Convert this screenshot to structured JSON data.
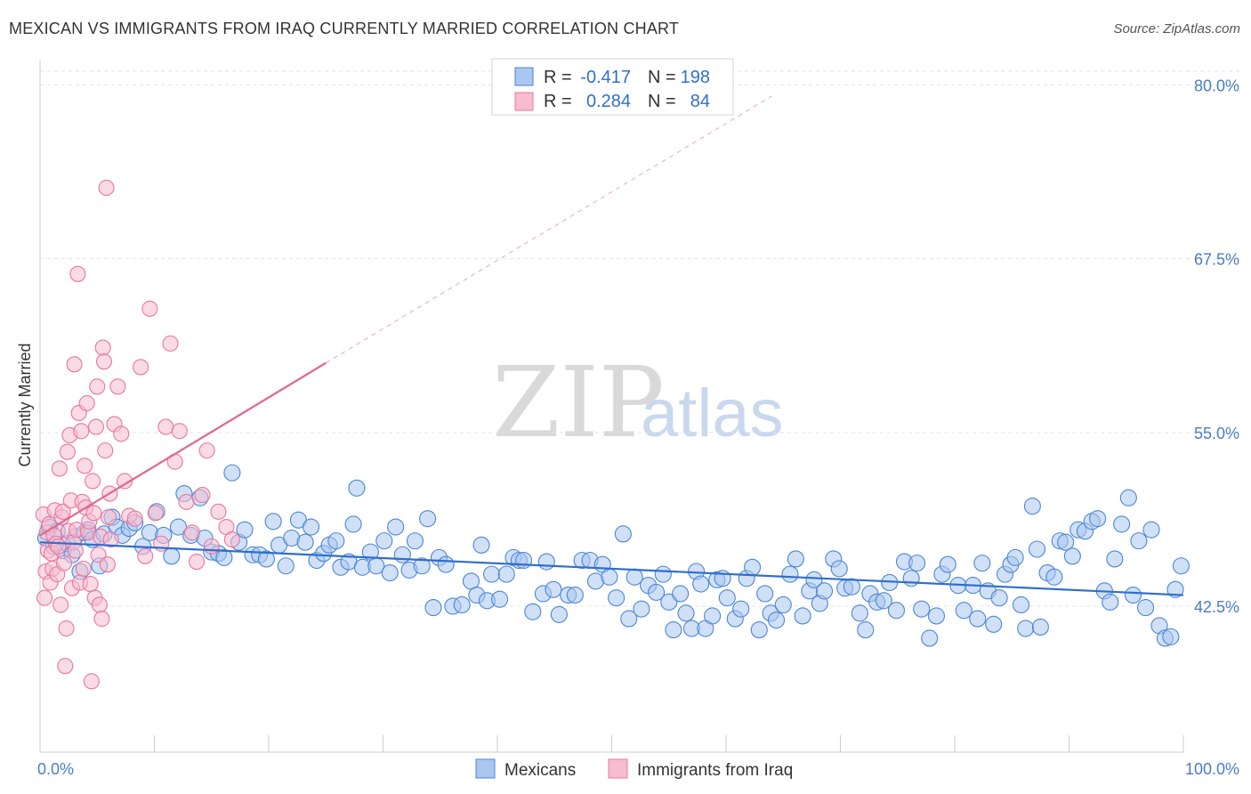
{
  "title": "MEXICAN VS IMMIGRANTS FROM IRAQ CURRENTLY MARRIED CORRELATION CHART",
  "source": "Source: ZipAtlas.com",
  "watermark": {
    "zip": "ZIP",
    "atlas": "atlas"
  },
  "colors": {
    "blue": "#4a86d6",
    "blue_fill": "#a9c7ef",
    "pink": "#e8779c",
    "pink_fill": "#f6bccf",
    "trend_blue": "#2f6fcc",
    "trend_pink": "#e06890"
  },
  "stats": {
    "r_label": "R =",
    "n_label": "N =",
    "series1": {
      "r": "-0.417",
      "n": "198"
    },
    "series2": {
      "r": "0.284",
      "n": "84"
    }
  },
  "chart_data": {
    "type": "scatter",
    "title": "MEXICAN VS IMMIGRANTS FROM IRAQ CURRENTLY MARRIED CORRELATION CHART",
    "xlabel": "",
    "ylabel": "Currently Married",
    "xlim": [
      0,
      100
    ],
    "ylim": [
      32.0,
      81.5
    ],
    "y_ticks": [
      42.5,
      55.0,
      67.5,
      80.0
    ],
    "y_tick_labels": [
      "42.5%",
      "55.0%",
      "67.5%",
      "80.0%"
    ],
    "x_tick_labels": [
      "0.0%",
      "100.0%"
    ],
    "grid": "horizontal dashed",
    "legend_position": "bottom-center",
    "series": [
      {
        "name": "Mexicans",
        "color": "#4a86d6",
        "trend": {
          "x": [
            0,
            100
          ],
          "y": [
            47.1,
            43.3
          ]
        },
        "points": [
          [
            0.5,
            47.4
          ],
          [
            0.8,
            48.2
          ],
          [
            1.2,
            46.8
          ],
          [
            1.5,
            47.9
          ],
          [
            2.0,
            46.5
          ],
          [
            2.4,
            47.0
          ],
          [
            2.8,
            46.2
          ],
          [
            3.1,
            47.5
          ],
          [
            3.5,
            45.0
          ],
          [
            3.9,
            47.8
          ],
          [
            4.2,
            48.0
          ],
          [
            4.6,
            47.3
          ],
          [
            5.2,
            45.4
          ],
          [
            5.6,
            47.7
          ],
          [
            6.3,
            48.9
          ],
          [
            6.7,
            48.2
          ],
          [
            7.2,
            47.6
          ],
          [
            7.8,
            48.1
          ],
          [
            8.3,
            48.5
          ],
          [
            9.0,
            46.8
          ],
          [
            9.6,
            47.8
          ],
          [
            10.2,
            49.3
          ],
          [
            10.8,
            47.6
          ],
          [
            11.5,
            46.1
          ],
          [
            12.1,
            48.2
          ],
          [
            12.6,
            50.6
          ],
          [
            13.2,
            47.6
          ],
          [
            14.0,
            50.3
          ],
          [
            14.4,
            47.4
          ],
          [
            15.0,
            46.4
          ],
          [
            15.6,
            46.3
          ],
          [
            16.1,
            46.0
          ],
          [
            16.8,
            52.1
          ],
          [
            17.4,
            47.1
          ],
          [
            17.9,
            48.0
          ],
          [
            18.6,
            46.2
          ],
          [
            19.2,
            46.2
          ],
          [
            19.8,
            45.9
          ],
          [
            20.4,
            48.6
          ],
          [
            20.9,
            46.9
          ],
          [
            21.5,
            45.4
          ],
          [
            22.0,
            47.4
          ],
          [
            22.6,
            48.7
          ],
          [
            23.2,
            47.1
          ],
          [
            23.7,
            48.2
          ],
          [
            24.2,
            45.8
          ],
          [
            24.8,
            46.3
          ],
          [
            25.3,
            46.9
          ],
          [
            25.9,
            47.2
          ],
          [
            26.3,
            45.3
          ],
          [
            27.0,
            45.7
          ],
          [
            27.4,
            48.4
          ],
          [
            27.7,
            51.0
          ],
          [
            28.2,
            45.3
          ],
          [
            28.9,
            46.4
          ],
          [
            29.4,
            45.4
          ],
          [
            30.1,
            47.2
          ],
          [
            30.6,
            44.9
          ],
          [
            31.1,
            48.2
          ],
          [
            31.7,
            46.2
          ],
          [
            32.3,
            45.1
          ],
          [
            32.8,
            47.2
          ],
          [
            33.4,
            45.4
          ],
          [
            33.9,
            48.8
          ],
          [
            34.4,
            42.4
          ],
          [
            34.9,
            46.0
          ],
          [
            35.5,
            45.5
          ],
          [
            36.1,
            42.5
          ],
          [
            36.9,
            42.6
          ],
          [
            37.7,
            44.3
          ],
          [
            38.2,
            43.3
          ],
          [
            38.6,
            46.9
          ],
          [
            39.1,
            42.9
          ],
          [
            39.5,
            44.8
          ],
          [
            40.2,
            43.0
          ],
          [
            40.8,
            44.8
          ],
          [
            41.4,
            46.0
          ],
          [
            41.9,
            45.8
          ],
          [
            42.3,
            45.8
          ],
          [
            43.1,
            42.1
          ],
          [
            44.0,
            43.4
          ],
          [
            44.3,
            45.7
          ],
          [
            44.9,
            43.7
          ],
          [
            45.4,
            41.9
          ],
          [
            46.2,
            43.3
          ],
          [
            46.8,
            43.3
          ],
          [
            47.4,
            45.8
          ],
          [
            48.1,
            45.8
          ],
          [
            48.6,
            44.3
          ],
          [
            49.2,
            45.5
          ],
          [
            49.8,
            44.6
          ],
          [
            50.4,
            43.1
          ],
          [
            51.0,
            47.7
          ],
          [
            51.5,
            41.6
          ],
          [
            52.0,
            44.6
          ],
          [
            52.6,
            42.3
          ],
          [
            53.2,
            44.0
          ],
          [
            53.9,
            43.5
          ],
          [
            54.5,
            44.8
          ],
          [
            55.0,
            42.8
          ],
          [
            55.4,
            40.8
          ],
          [
            56.0,
            43.4
          ],
          [
            56.5,
            42.0
          ],
          [
            57.0,
            40.9
          ],
          [
            57.4,
            45.0
          ],
          [
            57.8,
            44.1
          ],
          [
            58.2,
            40.9
          ],
          [
            58.8,
            41.8
          ],
          [
            59.2,
            44.4
          ],
          [
            59.7,
            44.5
          ],
          [
            60.1,
            43.1
          ],
          [
            60.8,
            41.6
          ],
          [
            61.3,
            42.3
          ],
          [
            61.8,
            44.5
          ],
          [
            62.3,
            45.3
          ],
          [
            62.9,
            40.8
          ],
          [
            63.4,
            43.4
          ],
          [
            63.9,
            42.0
          ],
          [
            64.4,
            41.5
          ],
          [
            65.0,
            42.6
          ],
          [
            65.6,
            44.8
          ],
          [
            66.1,
            45.9
          ],
          [
            66.7,
            41.8
          ],
          [
            67.3,
            43.6
          ],
          [
            67.7,
            44.4
          ],
          [
            68.2,
            42.7
          ],
          [
            68.6,
            43.6
          ],
          [
            69.4,
            45.9
          ],
          [
            69.9,
            45.2
          ],
          [
            70.4,
            43.8
          ],
          [
            71.0,
            43.9
          ],
          [
            71.7,
            42.0
          ],
          [
            72.2,
            40.8
          ],
          [
            72.6,
            43.4
          ],
          [
            73.2,
            42.8
          ],
          [
            73.8,
            42.9
          ],
          [
            74.3,
            44.2
          ],
          [
            74.9,
            42.2
          ],
          [
            75.6,
            45.7
          ],
          [
            76.2,
            44.5
          ],
          [
            76.7,
            45.6
          ],
          [
            77.1,
            42.3
          ],
          [
            77.8,
            40.2
          ],
          [
            78.4,
            41.8
          ],
          [
            78.9,
            44.8
          ],
          [
            79.4,
            45.5
          ],
          [
            80.3,
            44.0
          ],
          [
            80.8,
            42.2
          ],
          [
            81.6,
            44.0
          ],
          [
            82.0,
            41.6
          ],
          [
            82.4,
            45.6
          ],
          [
            82.9,
            43.6
          ],
          [
            83.4,
            41.2
          ],
          [
            83.9,
            43.1
          ],
          [
            84.4,
            44.8
          ],
          [
            84.9,
            45.5
          ],
          [
            85.3,
            46.0
          ],
          [
            85.8,
            42.6
          ],
          [
            86.2,
            40.9
          ],
          [
            86.8,
            49.7
          ],
          [
            87.2,
            46.6
          ],
          [
            87.5,
            41.0
          ],
          [
            88.1,
            44.9
          ],
          [
            88.7,
            44.6
          ],
          [
            89.2,
            47.2
          ],
          [
            89.7,
            47.1
          ],
          [
            90.3,
            46.1
          ],
          [
            90.8,
            48.0
          ],
          [
            91.4,
            47.9
          ],
          [
            92.0,
            48.6
          ],
          [
            92.5,
            48.8
          ],
          [
            93.1,
            43.6
          ],
          [
            93.6,
            42.8
          ],
          [
            94.0,
            45.9
          ],
          [
            94.6,
            48.4
          ],
          [
            95.2,
            50.3
          ],
          [
            95.6,
            43.3
          ],
          [
            96.1,
            47.2
          ],
          [
            96.7,
            42.4
          ],
          [
            97.2,
            48.0
          ],
          [
            97.9,
            41.1
          ],
          [
            98.4,
            40.2
          ],
          [
            98.9,
            40.3
          ],
          [
            99.3,
            43.7
          ],
          [
            99.8,
            45.4
          ]
        ]
      },
      {
        "name": "Immigrants from Iraq",
        "color": "#e8779c",
        "trend": {
          "x": [
            0,
            25
          ],
          "y": [
            47.6,
            60.0
          ]
        },
        "trend_extension": {
          "x": [
            25,
            64
          ],
          "y": [
            60.0,
            79.2
          ]
        },
        "points": [
          [
            0.3,
            49.1
          ],
          [
            0.4,
            43.1
          ],
          [
            0.5,
            45.0
          ],
          [
            0.6,
            47.8
          ],
          [
            0.7,
            46.5
          ],
          [
            0.8,
            48.4
          ],
          [
            0.9,
            44.2
          ],
          [
            1.0,
            46.3
          ],
          [
            1.1,
            45.2
          ],
          [
            1.2,
            47.6
          ],
          [
            1.3,
            49.4
          ],
          [
            1.4,
            47.0
          ],
          [
            1.5,
            44.8
          ],
          [
            1.6,
            46.8
          ],
          [
            1.7,
            52.4
          ],
          [
            1.8,
            42.6
          ],
          [
            1.9,
            48.9
          ],
          [
            2.0,
            49.3
          ],
          [
            2.1,
            45.6
          ],
          [
            2.2,
            38.2
          ],
          [
            2.3,
            40.9
          ],
          [
            2.4,
            53.6
          ],
          [
            2.5,
            47.9
          ],
          [
            2.6,
            54.8
          ],
          [
            2.7,
            50.1
          ],
          [
            2.8,
            43.8
          ],
          [
            2.9,
            47.1
          ],
          [
            3.0,
            59.9
          ],
          [
            3.1,
            46.5
          ],
          [
            3.2,
            48.0
          ],
          [
            3.3,
            66.4
          ],
          [
            3.4,
            56.4
          ],
          [
            3.5,
            44.2
          ],
          [
            3.6,
            55.1
          ],
          [
            3.7,
            50.0
          ],
          [
            3.8,
            45.2
          ],
          [
            3.9,
            52.6
          ],
          [
            4.0,
            49.6
          ],
          [
            4.1,
            57.1
          ],
          [
            4.2,
            47.8
          ],
          [
            4.3,
            48.6
          ],
          [
            4.4,
            44.1
          ],
          [
            4.5,
            37.1
          ],
          [
            4.6,
            51.5
          ],
          [
            4.7,
            49.2
          ],
          [
            4.8,
            43.1
          ],
          [
            4.9,
            55.4
          ],
          [
            5.0,
            58.3
          ],
          [
            5.1,
            46.2
          ],
          [
            5.2,
            42.6
          ],
          [
            5.3,
            47.5
          ],
          [
            5.4,
            41.6
          ],
          [
            5.5,
            61.1
          ],
          [
            5.6,
            60.1
          ],
          [
            5.7,
            53.7
          ],
          [
            5.8,
            72.6
          ],
          [
            5.9,
            45.5
          ],
          [
            6.0,
            48.9
          ],
          [
            6.1,
            50.6
          ],
          [
            6.2,
            47.3
          ],
          [
            6.5,
            55.6
          ],
          [
            6.8,
            58.3
          ],
          [
            7.1,
            54.9
          ],
          [
            7.4,
            51.5
          ],
          [
            7.8,
            49.0
          ],
          [
            8.3,
            48.8
          ],
          [
            8.8,
            59.7
          ],
          [
            9.2,
            46.1
          ],
          [
            9.6,
            63.9
          ],
          [
            10.1,
            49.2
          ],
          [
            10.6,
            47.0
          ],
          [
            11.0,
            55.4
          ],
          [
            11.4,
            61.4
          ],
          [
            11.8,
            52.9
          ],
          [
            12.2,
            55.1
          ],
          [
            12.8,
            50.0
          ],
          [
            13.3,
            47.8
          ],
          [
            13.7,
            45.7
          ],
          [
            14.2,
            50.5
          ],
          [
            14.6,
            53.7
          ],
          [
            15.0,
            46.8
          ],
          [
            15.6,
            49.3
          ],
          [
            16.3,
            48.2
          ],
          [
            16.8,
            47.3
          ]
        ]
      }
    ]
  },
  "legend": {
    "series1": "Mexicans",
    "series2": "Immigrants from Iraq"
  }
}
